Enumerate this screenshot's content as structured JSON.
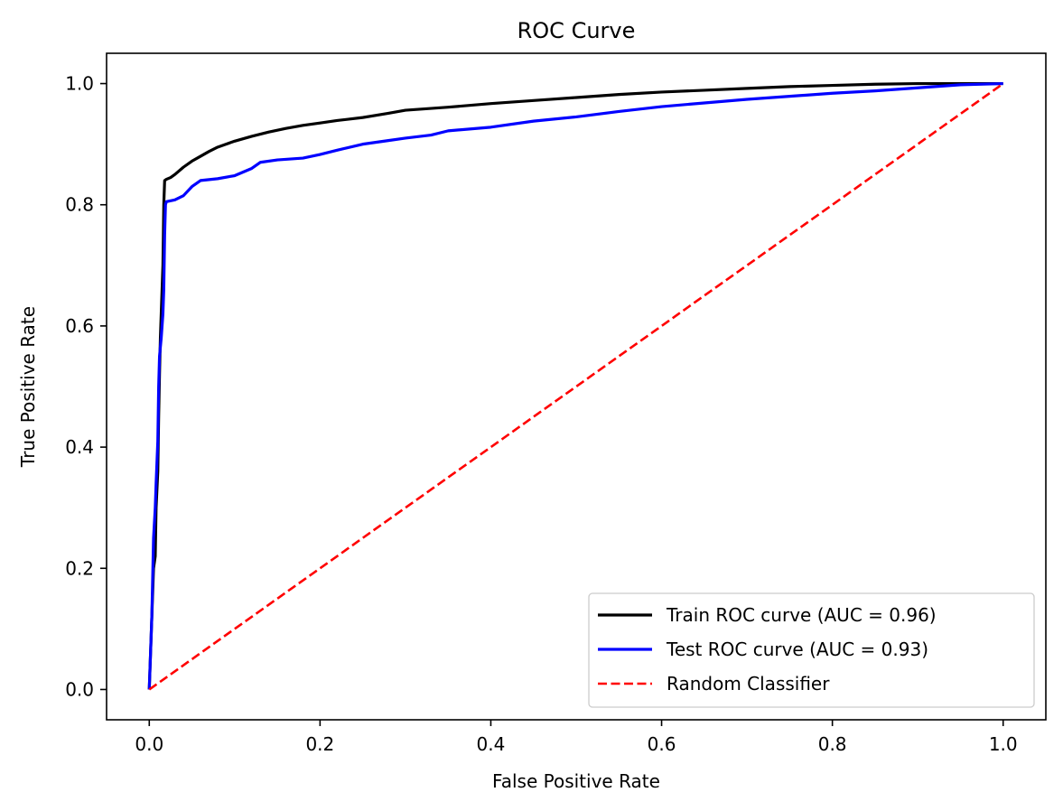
{
  "chart_data": {
    "type": "line",
    "title": "ROC Curve",
    "xlabel": "False Positive Rate",
    "ylabel": "True Positive Rate",
    "xlim": [
      -0.05,
      1.05
    ],
    "ylim": [
      -0.05,
      1.05
    ],
    "xticks": [
      0.0,
      0.2,
      0.4,
      0.6,
      0.8,
      1.0
    ],
    "yticks": [
      0.0,
      0.2,
      0.4,
      0.6,
      0.8,
      1.0
    ],
    "xtick_labels": [
      "0.0",
      "0.2",
      "0.4",
      "0.6",
      "0.8",
      "1.0"
    ],
    "ytick_labels": [
      "0.0",
      "0.2",
      "0.4",
      "0.6",
      "0.8",
      "1.0"
    ],
    "grid": false,
    "legend_position": "lower-right",
    "series": [
      {
        "name": "Train ROC curve (AUC = 0.96)",
        "color": "#000000",
        "dash": "solid",
        "x": [
          0,
          0.003,
          0.005,
          0.007,
          0.008,
          0.01,
          0.011,
          0.012,
          0.013,
          0.014,
          0.015,
          0.016,
          0.017,
          0.018,
          0.02,
          0.025,
          0.03,
          0.04,
          0.05,
          0.06,
          0.07,
          0.08,
          0.09,
          0.1,
          0.12,
          0.14,
          0.16,
          0.18,
          0.2,
          0.22,
          0.25,
          0.28,
          0.3,
          0.35,
          0.4,
          0.45,
          0.5,
          0.55,
          0.6,
          0.65,
          0.7,
          0.75,
          0.8,
          0.85,
          0.9,
          0.95,
          1.0
        ],
        "y": [
          0,
          0.12,
          0.2,
          0.22,
          0.3,
          0.36,
          0.45,
          0.52,
          0.58,
          0.62,
          0.66,
          0.7,
          0.8,
          0.84,
          0.842,
          0.845,
          0.85,
          0.862,
          0.872,
          0.88,
          0.888,
          0.895,
          0.9,
          0.905,
          0.913,
          0.92,
          0.926,
          0.931,
          0.935,
          0.939,
          0.944,
          0.951,
          0.956,
          0.961,
          0.967,
          0.972,
          0.977,
          0.982,
          0.986,
          0.989,
          0.992,
          0.995,
          0.997,
          0.999,
          1.0,
          1.0,
          1.0
        ]
      },
      {
        "name": "Test ROC curve (AUC = 0.93)",
        "color": "#0000ff",
        "dash": "solid",
        "x": [
          0,
          0.003,
          0.005,
          0.007,
          0.008,
          0.01,
          0.011,
          0.012,
          0.014,
          0.016,
          0.017,
          0.018,
          0.019,
          0.02,
          0.03,
          0.04,
          0.05,
          0.06,
          0.08,
          0.1,
          0.12,
          0.13,
          0.15,
          0.18,
          0.2,
          0.22,
          0.25,
          0.28,
          0.3,
          0.33,
          0.35,
          0.4,
          0.45,
          0.5,
          0.55,
          0.6,
          0.65,
          0.7,
          0.75,
          0.8,
          0.85,
          0.9,
          0.95,
          1.0
        ],
        "y": [
          0,
          0.12,
          0.25,
          0.3,
          0.34,
          0.41,
          0.5,
          0.55,
          0.58,
          0.62,
          0.66,
          0.75,
          0.8,
          0.805,
          0.808,
          0.815,
          0.83,
          0.84,
          0.843,
          0.848,
          0.86,
          0.87,
          0.874,
          0.877,
          0.883,
          0.89,
          0.9,
          0.906,
          0.91,
          0.915,
          0.922,
          0.928,
          0.938,
          0.945,
          0.954,
          0.962,
          0.968,
          0.974,
          0.979,
          0.984,
          0.988,
          0.993,
          0.998,
          1.0
        ]
      },
      {
        "name": "Random Classifier",
        "color": "#ff0000",
        "dash": "dashed",
        "x": [
          0,
          1
        ],
        "y": [
          0,
          1
        ]
      }
    ]
  }
}
